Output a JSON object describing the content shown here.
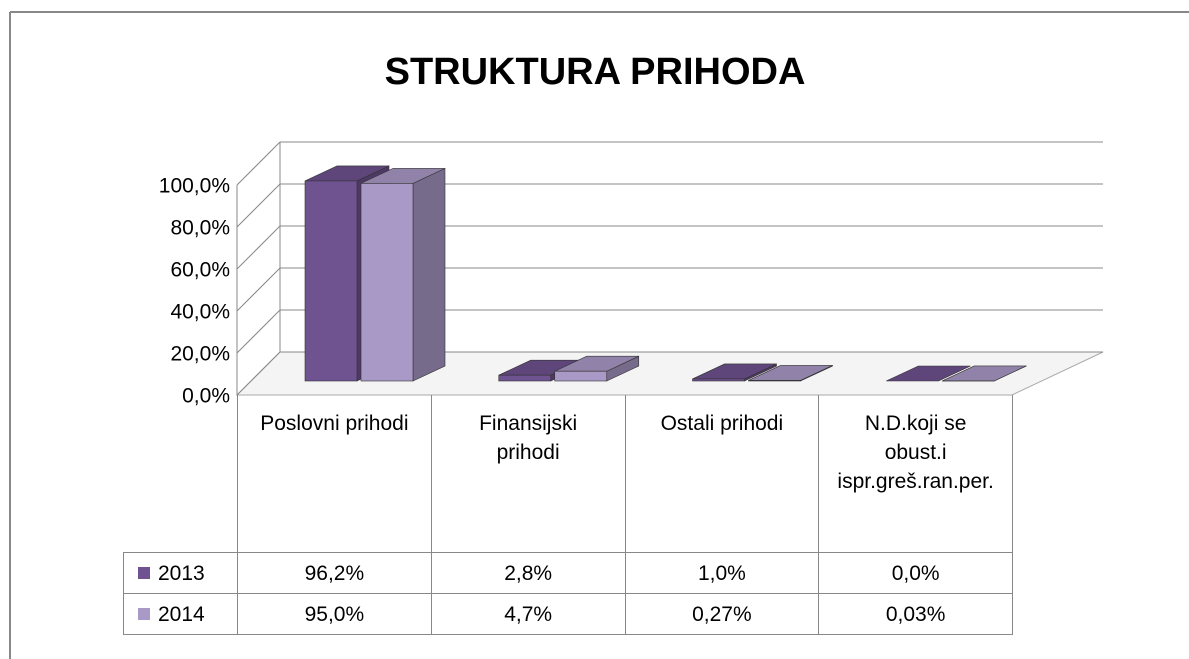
{
  "chart_data": {
    "type": "bar",
    "title": "STRUKTURA PRIHODA",
    "categories": [
      "Poslovni prihodi",
      "Finansijski prihodi",
      "Ostali prihodi",
      "N.D.koji se obust.i ispr.greš.ran.per."
    ],
    "series": [
      {
        "name": "2013",
        "color": "#6f5290",
        "values": [
          96.2,
          2.8,
          1.0,
          0.0
        ],
        "value_labels": [
          "96,2%",
          "2,8%",
          "1,0%",
          "0,0%"
        ]
      },
      {
        "name": "2014",
        "color": "#a999c6",
        "values": [
          95.0,
          4.7,
          0.27,
          0.03
        ],
        "value_labels": [
          "95,0%",
          "4,7%",
          "0,27%",
          "0,03%"
        ]
      }
    ],
    "ylim": [
      0,
      100
    ],
    "yticks": [
      {
        "value": 0,
        "label": "0,0%"
      },
      {
        "value": 20,
        "label": "20,0%"
      },
      {
        "value": 40,
        "label": "40,0%"
      },
      {
        "value": 60,
        "label": "60,0%"
      },
      {
        "value": 80,
        "label": "80,0%"
      },
      {
        "value": 100,
        "label": "100,0%"
      }
    ],
    "grid": true
  }
}
